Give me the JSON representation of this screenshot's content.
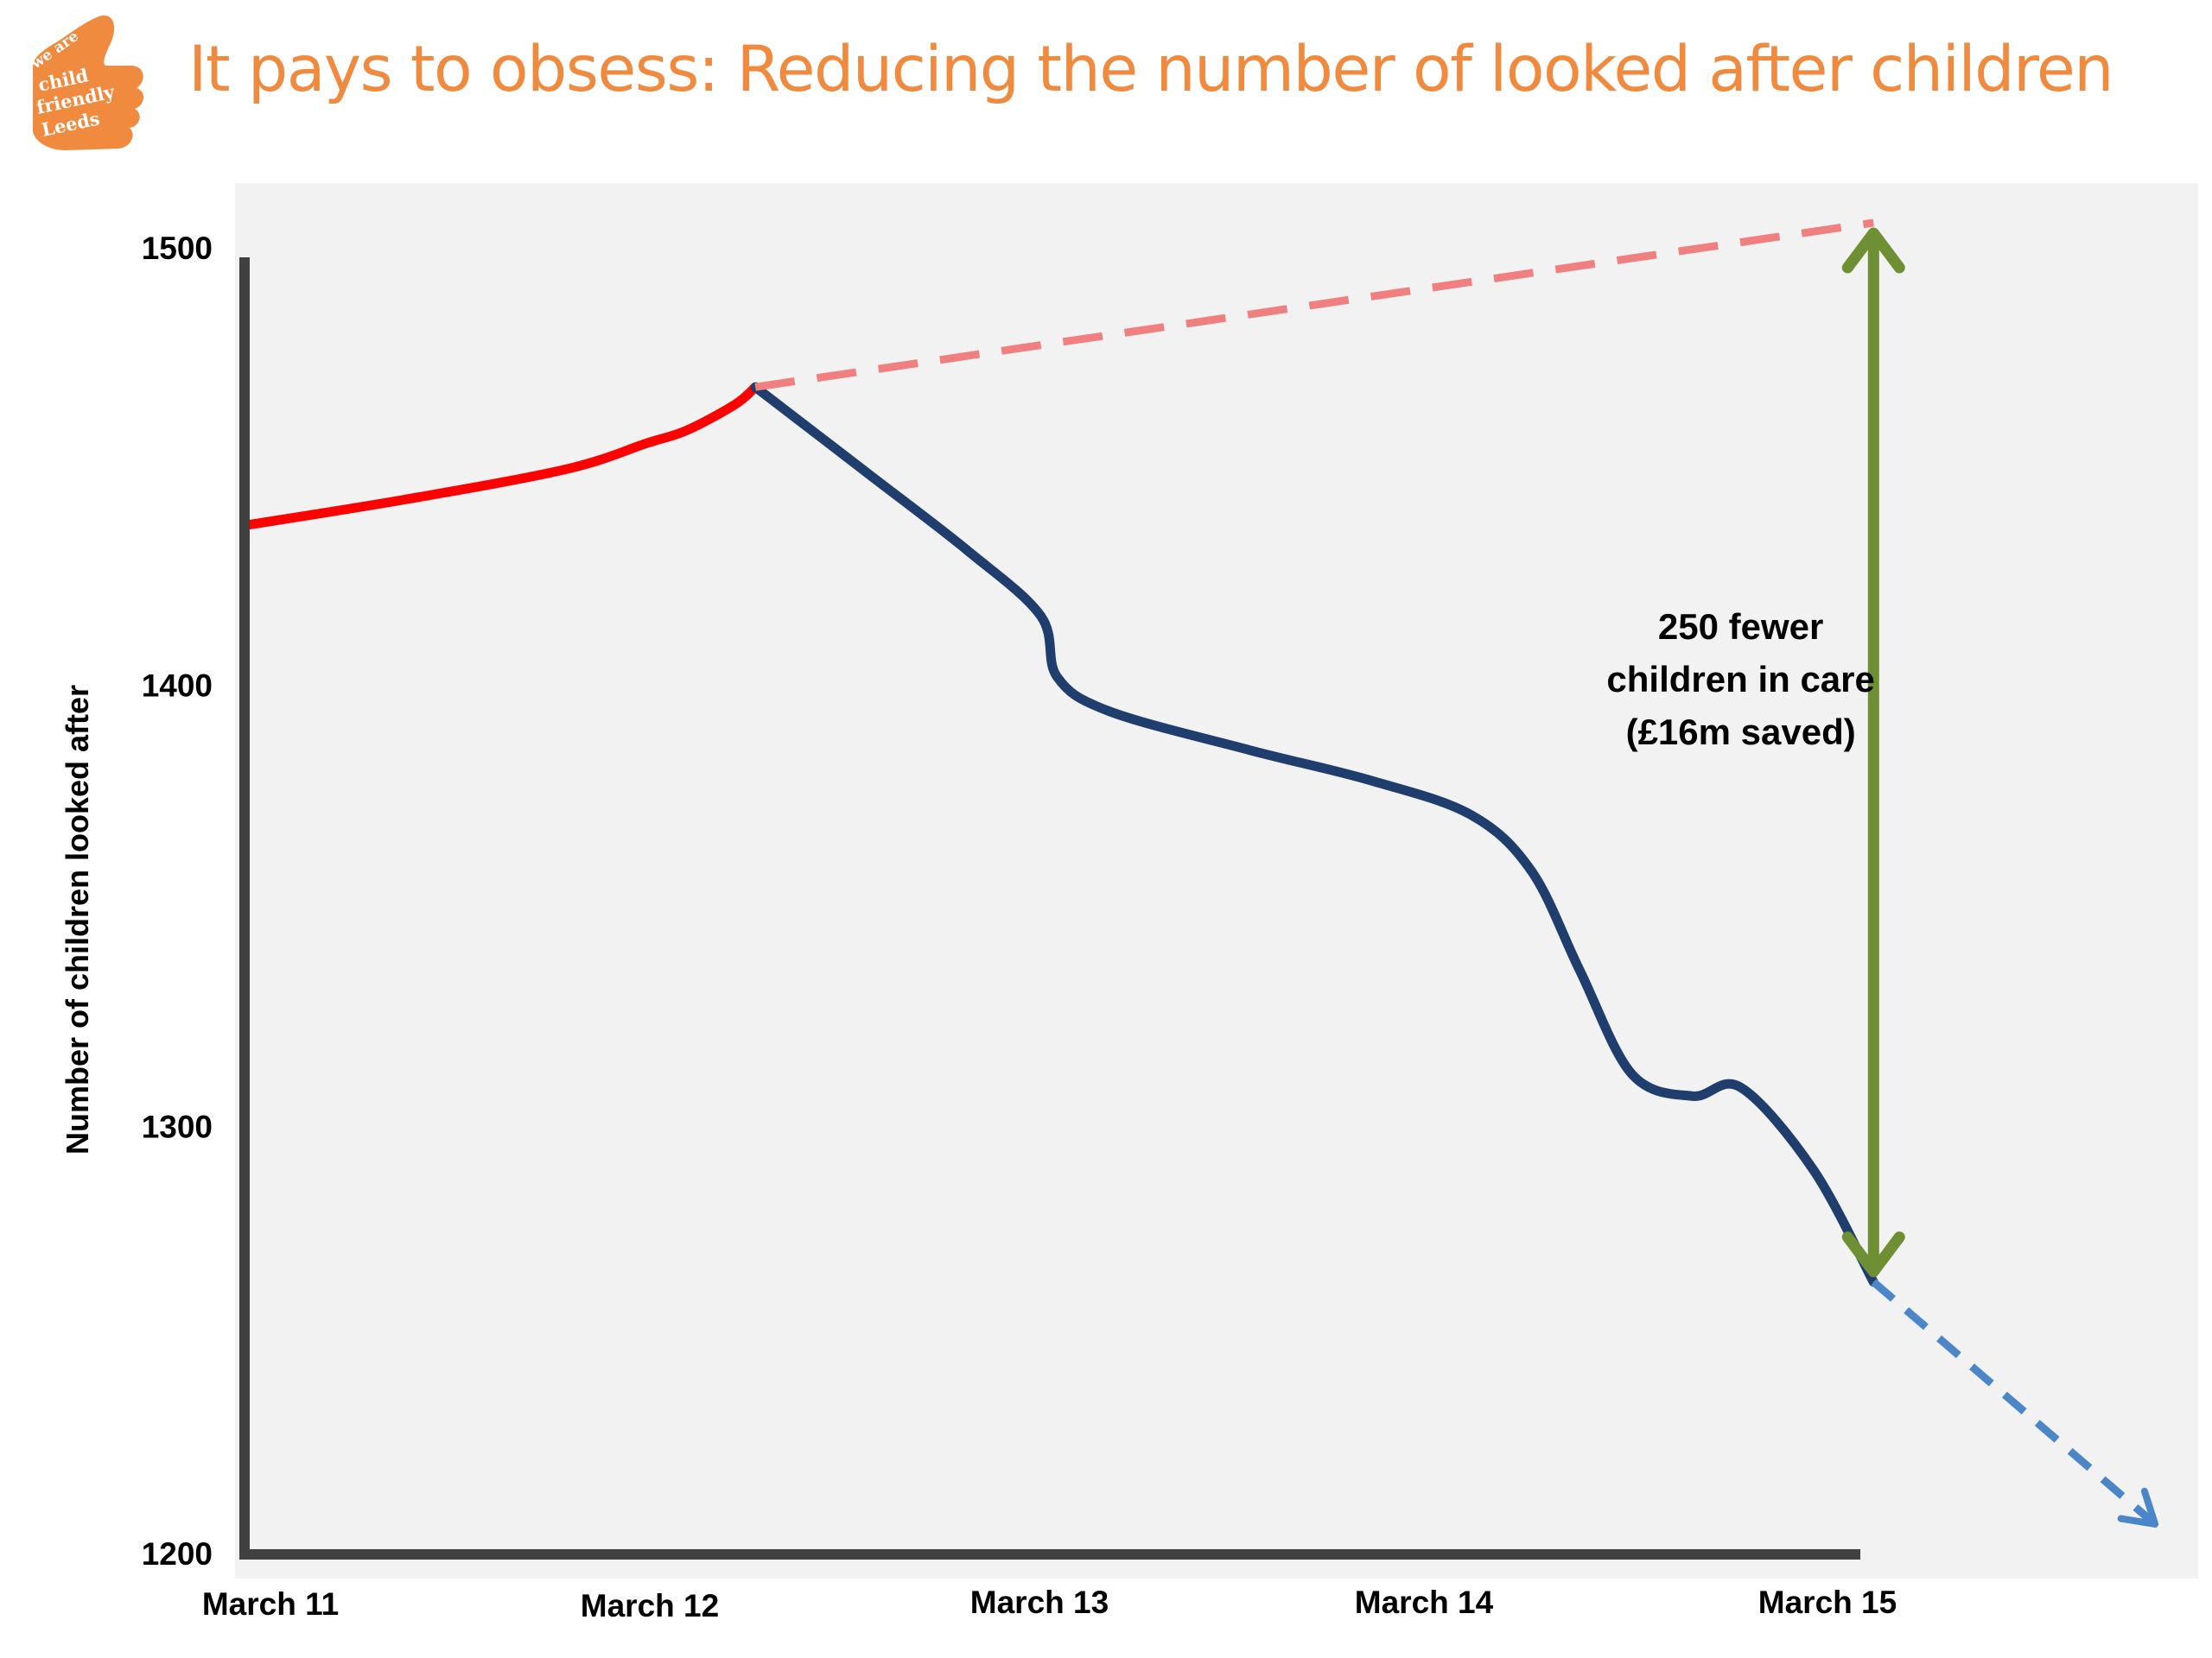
{
  "header": {
    "title": "It pays to obsess: Reducing the number of looked after children",
    "title_color": "#ef8a3e",
    "logo": {
      "icon": "thumbs-up-icon",
      "text_top": "we are",
      "text_line1": "child",
      "text_line2": "friendly",
      "text_line3": "Leeds",
      "color": "#ef8a3e"
    }
  },
  "chart_data": {
    "type": "line",
    "title": "",
    "xlabel": "",
    "ylabel": "Number of children looked after",
    "categories": [
      "March 11",
      "March 12",
      "March 13",
      "March 14",
      "March 15"
    ],
    "ylim": [
      1200,
      1500
    ],
    "yticks": [
      1200,
      1300,
      1400,
      1500
    ],
    "grid": false,
    "legend": "none",
    "background": "#f2f2f2",
    "series": [
      {
        "style": "solid",
        "color": "#ff0000",
        "points": [
          [
            0,
            1438
          ],
          [
            0.4,
            1444
          ],
          [
            0.8,
            1451
          ],
          [
            1.0,
            1457
          ],
          [
            1.1,
            1460
          ],
          [
            1.22,
            1466
          ],
          [
            1.27,
            1470
          ]
        ]
      },
      {
        "style": "solid",
        "color": "#1f3e6e",
        "points": [
          [
            1.27,
            1470
          ],
          [
            1.55,
            1450
          ],
          [
            1.8,
            1432
          ],
          [
            1.98,
            1417
          ],
          [
            2.02,
            1403
          ],
          [
            2.15,
            1395
          ],
          [
            2.5,
            1386
          ],
          [
            2.8,
            1379
          ],
          [
            3.05,
            1371
          ],
          [
            3.2,
            1358
          ],
          [
            3.32,
            1335
          ],
          [
            3.45,
            1311
          ],
          [
            3.6,
            1306
          ],
          [
            3.72,
            1308
          ],
          [
            3.9,
            1289
          ],
          [
            4.05,
            1263
          ]
        ]
      },
      {
        "style": "dashed",
        "color": "#f08080",
        "points": [
          [
            1.27,
            1470
          ],
          [
            4.05,
            1508
          ]
        ]
      },
      {
        "style": "dashed",
        "color": "#4a86c8",
        "points": [
          [
            4.05,
            1263
          ],
          [
            4.75,
            1207
          ]
        ]
      }
    ],
    "annotations": [
      {
        "type": "double-arrow",
        "color": "#6f8f35",
        "x": 4.05,
        "y_from": 1263,
        "y_to": 1508,
        "lines": [
          "250 fewer",
          "children in care",
          "(£16m saved)"
        ],
        "label_x": 3.72,
        "label_y": 1400
      }
    ]
  }
}
